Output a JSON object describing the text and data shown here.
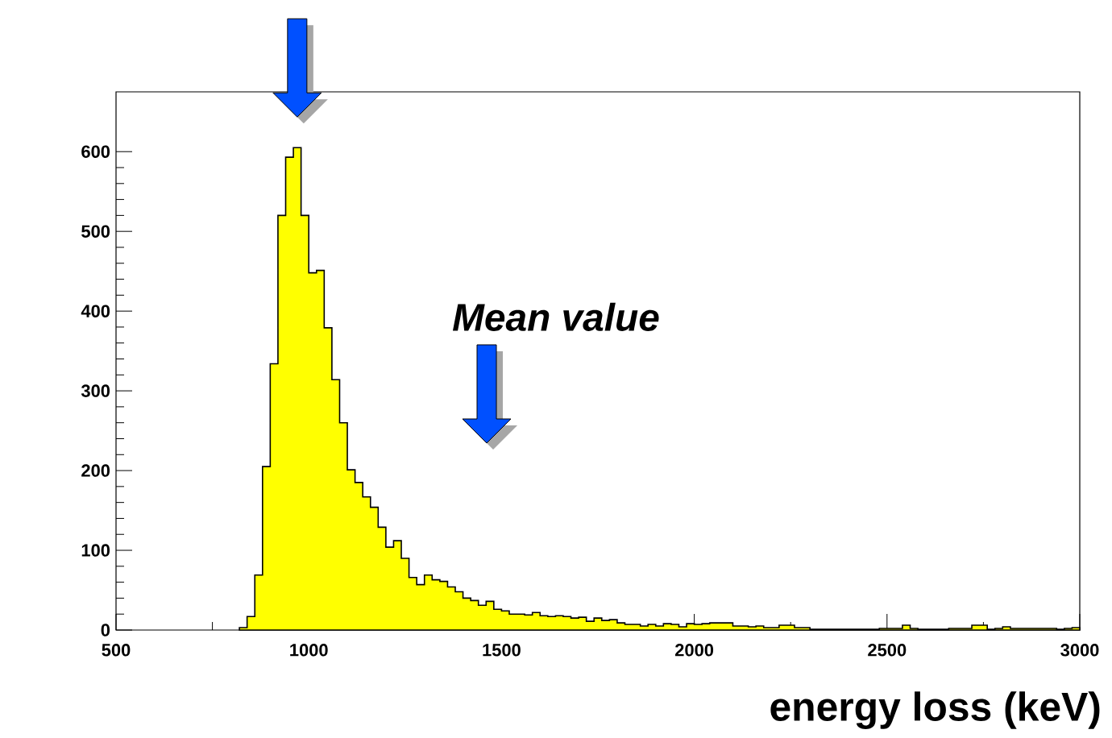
{
  "chart_data": {
    "type": "histogram",
    "xlabel": "energy loss (keV)",
    "color": "#ffff00",
    "bins": [
      820,
      840,
      860,
      880,
      900,
      920,
      940,
      960,
      980,
      1000,
      1020,
      1040,
      1060,
      1080,
      1100,
      1120,
      1140,
      1160,
      1180,
      1200,
      1220,
      1240,
      1260,
      1280,
      1300,
      1320,
      1340,
      1360,
      1380,
      1400,
      1420,
      1440,
      1460,
      1480,
      1500,
      1520,
      1540,
      1560,
      1580,
      1600,
      1620,
      1640,
      1660,
      1680,
      1700,
      1720,
      1740,
      1760,
      1780,
      1800,
      1820,
      1840,
      1860,
      1880,
      1900,
      1920,
      1940,
      1960,
      1980,
      2000,
      2020,
      2040,
      2060,
      2080,
      2100,
      2120,
      2140,
      2160,
      2180,
      2200,
      2220,
      2240,
      2260,
      2280,
      2300,
      2320,
      2340,
      2360,
      2380,
      2400,
      2420,
      2440,
      2460,
      2480,
      2500,
      2520,
      2540,
      2560,
      2580,
      2600,
      2620,
      2640,
      2660,
      2680,
      2700,
      2720,
      2740,
      2760,
      2780,
      2800,
      2820,
      2840,
      2860,
      2880,
      2900,
      2920,
      2940,
      2960,
      2980,
      3000
    ],
    "values": [
      3,
      17,
      69,
      205,
      334,
      520,
      593,
      605,
      520,
      448,
      451,
      379,
      314,
      260,
      201,
      185,
      167,
      154,
      129,
      104,
      112,
      90,
      66,
      57,
      69,
      63,
      61,
      54,
      48,
      40,
      37,
      31,
      36,
      26,
      24,
      20,
      20,
      19,
      22,
      18,
      17,
      18,
      17,
      15,
      16,
      11,
      15,
      12,
      13,
      9,
      7,
      7,
      5,
      7,
      5,
      8,
      7,
      4,
      8,
      7,
      8,
      9,
      9,
      9,
      5,
      5,
      4,
      5,
      3,
      3,
      6,
      6,
      3,
      3,
      1,
      1,
      1,
      1,
      1,
      1,
      1,
      1,
      1,
      2,
      2,
      2,
      6,
      2,
      1,
      1,
      1,
      1,
      2,
      2,
      2,
      6,
      6,
      1,
      2,
      4,
      2,
      2,
      2,
      2,
      2,
      2,
      1,
      2,
      3
    ],
    "xlim": [
      500,
      3000
    ],
    "ylim": [
      0,
      675
    ],
    "xticks": [
      500,
      1000,
      1500,
      2000,
      2500,
      3000
    ],
    "yticks": [
      0,
      100,
      200,
      300,
      400,
      500,
      600
    ],
    "annotations": [
      "Mean value"
    ]
  }
}
